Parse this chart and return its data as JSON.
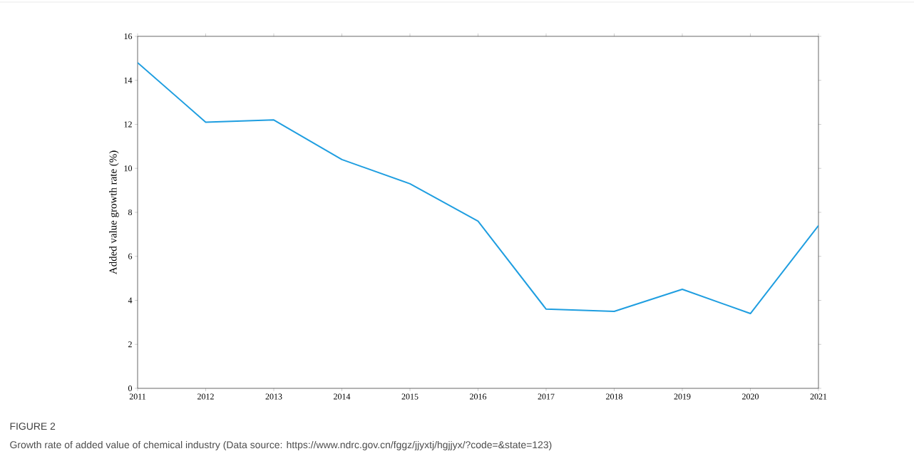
{
  "chart_data": {
    "type": "line",
    "ylabel": "Added value growth rate (%)",
    "x": [
      2011,
      2012,
      2013,
      2014,
      2015,
      2016,
      2017,
      2018,
      2019,
      2020,
      2021
    ],
    "series": [
      {
        "color": "#1f9ee0",
        "values": [
          14.8,
          12.1,
          12.2,
          10.4,
          9.3,
          7.6,
          3.6,
          3.5,
          4.5,
          3.4,
          7.4
        ]
      }
    ],
    "xlim": [
      2011,
      2021
    ],
    "xticks": [
      2011,
      2012,
      2013,
      2014,
      2015,
      2016,
      2017,
      2018,
      2019,
      2020,
      2021
    ],
    "ylim": [
      0,
      16
    ],
    "yticks": [
      0,
      2,
      4,
      6,
      8,
      10,
      12,
      14,
      16
    ],
    "annotations": [
      "FIGURE 2",
      "Growth rate of added value of chemical industry (Data source: https://www.ndrc.gov.cn/fggz/jjyxtj/hgjjyx/?code=&state=123)"
    ]
  }
}
